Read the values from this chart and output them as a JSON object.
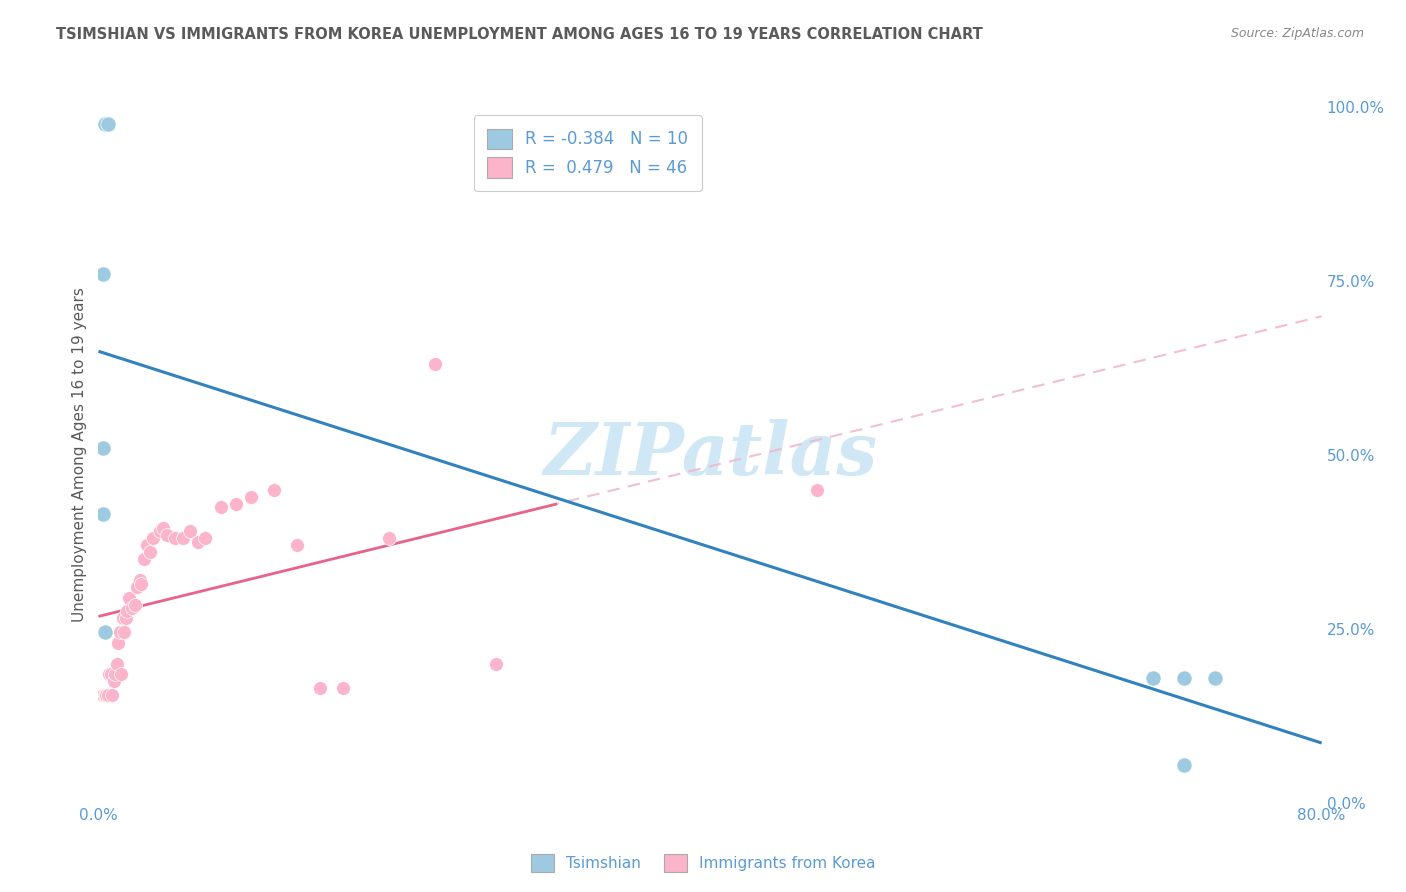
{
  "title": "TSIMSHIAN VS IMMIGRANTS FROM KOREA UNEMPLOYMENT AMONG AGES 16 TO 19 YEARS CORRELATION CHART",
  "source": "Source: ZipAtlas.com",
  "ylabel": "Unemployment Among Ages 16 to 19 years",
  "xlim": [
    0.0,
    0.8
  ],
  "ylim": [
    0.0,
    1.0
  ],
  "y_ticks_right": [
    0.0,
    0.25,
    0.5,
    0.75,
    1.0
  ],
  "y_tick_labels_right": [
    "0.0%",
    "25.0%",
    "50.0%",
    "75.0%",
    "100.0%"
  ],
  "tsimshian_scatter_color": "#9ecae1",
  "korea_scatter_color": "#fbb4c9",
  "tsimshian_line_color": "#3182bd",
  "korea_line_color": "#e8628a",
  "korea_dash_color": "#f0b8cc",
  "legend_R_label1": "R = -0.384   N = 10",
  "legend_R_label2": "R =  0.479   N = 46",
  "legend_label1": "Tsimshian",
  "legend_label2": "Immigrants from Korea",
  "watermark": "ZIPatlas",
  "tsimshian_x": [
    0.004,
    0.006,
    0.003,
    0.003,
    0.003,
    0.004,
    0.69,
    0.71,
    0.71,
    0.73
  ],
  "tsimshian_y": [
    0.975,
    0.975,
    0.76,
    0.51,
    0.415,
    0.245,
    0.18,
    0.18,
    0.055,
    0.18
  ],
  "korea_x": [
    0.003,
    0.004,
    0.005,
    0.006,
    0.007,
    0.008,
    0.009,
    0.01,
    0.011,
    0.012,
    0.013,
    0.014,
    0.015,
    0.016,
    0.017,
    0.018,
    0.019,
    0.02,
    0.022,
    0.024,
    0.025,
    0.027,
    0.028,
    0.03,
    0.032,
    0.034,
    0.036,
    0.04,
    0.042,
    0.045,
    0.05,
    0.055,
    0.06,
    0.065,
    0.07,
    0.08,
    0.09,
    0.1,
    0.115,
    0.13,
    0.145,
    0.16,
    0.19,
    0.22,
    0.26,
    0.47
  ],
  "korea_y": [
    0.155,
    0.155,
    0.155,
    0.155,
    0.185,
    0.185,
    0.155,
    0.175,
    0.185,
    0.2,
    0.23,
    0.245,
    0.185,
    0.265,
    0.245,
    0.265,
    0.275,
    0.295,
    0.28,
    0.285,
    0.31,
    0.32,
    0.315,
    0.35,
    0.37,
    0.36,
    0.38,
    0.39,
    0.395,
    0.385,
    0.38,
    0.38,
    0.39,
    0.375,
    0.38,
    0.425,
    0.43,
    0.44,
    0.45,
    0.37,
    0.165,
    0.165,
    0.38,
    0.63,
    0.2,
    0.45
  ],
  "background_color": "#ffffff",
  "grid_color": "#d0d0d0",
  "title_color": "#5a5a5a",
  "axis_color": "#5b9bd5",
  "watermark_color": "#d0e8f5"
}
